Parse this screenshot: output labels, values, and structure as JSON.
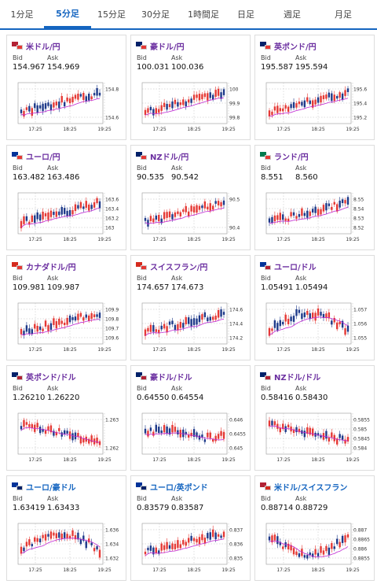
{
  "tabs": [
    {
      "label": "1分足",
      "active": false
    },
    {
      "label": "5分足",
      "active": true
    },
    {
      "label": "15分足",
      "active": false
    },
    {
      "label": "30分足",
      "active": false
    },
    {
      "label": "1時間足",
      "active": false
    },
    {
      "label": "日足",
      "active": false
    },
    {
      "label": "週足",
      "active": false
    },
    {
      "label": "月足",
      "active": false
    }
  ],
  "labels": {
    "bid": "Bid",
    "ask": "Ask"
  },
  "xticks": [
    "17:25",
    "18:25",
    "19:25"
  ],
  "colors": {
    "up": "#e53935",
    "down": "#1e3a8a",
    "ma": "#c026d3",
    "grid": "#bbb"
  },
  "cards": [
    {
      "pair": "米ドル/円",
      "bid": "154.967",
      "ask": "154.969",
      "yticks": [
        "154.8",
        "154.6"
      ],
      "trend": "up",
      "flag": [
        "#b22234",
        "#e53935"
      ]
    },
    {
      "pair": "豪ドル/円",
      "bid": "100.031",
      "ask": "100.036",
      "yticks": [
        "100",
        "99.9",
        "99.8"
      ],
      "trend": "up",
      "flag": [
        "#012169",
        "#e53935"
      ]
    },
    {
      "pair": "英ポンド/円",
      "bid": "195.587",
      "ask": "195.594",
      "yticks": [
        "195.6",
        "195.4",
        "195.2"
      ],
      "trend": "up",
      "flag": [
        "#012169",
        "#e53935"
      ]
    },
    {
      "pair": "ユーロ/円",
      "bid": "163.482",
      "ask": "163.486",
      "yticks": [
        "163.6",
        "163.4",
        "163.2",
        "163"
      ],
      "trend": "up",
      "flag": [
        "#003399",
        "#e53935"
      ]
    },
    {
      "pair": "NZドル/円",
      "bid": "90.535",
      "ask": "90.542",
      "yticks": [
        "90.5",
        "90.4"
      ],
      "trend": "up",
      "flag": [
        "#012169",
        "#e53935"
      ]
    },
    {
      "pair": "ランド/円",
      "bid": "8.551",
      "ask": "8.560",
      "yticks": [
        "8.55",
        "8.54",
        "8.53",
        "8.52"
      ],
      "trend": "up",
      "flag": [
        "#007a4d",
        "#e53935"
      ]
    },
    {
      "pair": "カナダドル/円",
      "bid": "109.981",
      "ask": "109.987",
      "yticks": [
        "109.9",
        "109.8",
        "109.7",
        "109.6"
      ],
      "trend": "up",
      "flag": [
        "#d52b1e",
        "#e53935"
      ]
    },
    {
      "pair": "スイスフラン/円",
      "bid": "174.657",
      "ask": "174.673",
      "yticks": [
        "174.6",
        "174.4",
        "174.2"
      ],
      "trend": "up",
      "flag": [
        "#d52b1e",
        "#e53935"
      ]
    },
    {
      "pair": "ユーロ/ドル",
      "bid": "1.05491",
      "ask": "1.05494",
      "yticks": [
        "1.057",
        "1.056",
        "1.055"
      ],
      "trend": "hump",
      "flag": [
        "#003399",
        "#b22234"
      ]
    },
    {
      "pair": "英ポンド/ドル",
      "bid": "1.26210",
      "ask": "1.26220",
      "yticks": [
        "1.263",
        "1.262"
      ],
      "trend": "down",
      "flag": [
        "#012169",
        "#b22234"
      ]
    },
    {
      "pair": "豪ドル/ドル",
      "bid": "0.64550",
      "ask": "0.64554",
      "yticks": [
        "0.646",
        "0.6455",
        "0.645"
      ],
      "trend": "flat",
      "flag": [
        "#012169",
        "#b22234"
      ]
    },
    {
      "pair": "NZドル/ドル",
      "bid": "0.58416",
      "ask": "0.58430",
      "yticks": [
        "0.5855",
        "0.585",
        "0.5845",
        "0.584"
      ],
      "trend": "down",
      "flag": [
        "#012169",
        "#b22234"
      ]
    },
    {
      "pair": "ユーロ/豪ドル",
      "bid": "1.63419",
      "ask": "1.63433",
      "yticks": [
        "1.636",
        "1.634",
        "1.632"
      ],
      "trend": "hump",
      "flag": [
        "#003399",
        "#012169"
      ],
      "blue": true
    },
    {
      "pair": "ユーロ/英ポンド",
      "bid": "0.83579",
      "ask": "0.83587",
      "yticks": [
        "0.837",
        "0.836",
        "0.835"
      ],
      "trend": "up",
      "flag": [
        "#003399",
        "#012169"
      ],
      "blue": true
    },
    {
      "pair": "米ドル/スイスフラン",
      "bid": "0.88714",
      "ask": "0.88729",
      "yticks": [
        "0.887",
        "0.8865",
        "0.886",
        "0.8855"
      ],
      "trend": "dip",
      "flag": [
        "#b22234",
        "#d52b1e"
      ],
      "blue": true
    }
  ]
}
